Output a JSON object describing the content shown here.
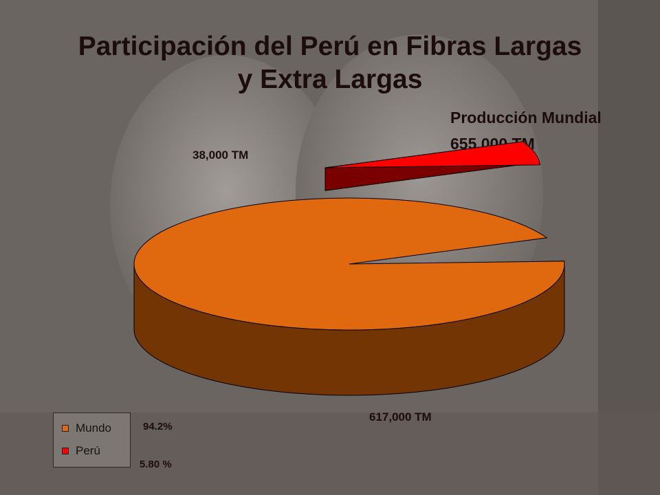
{
  "title_line1": "Participación del Perú en Fibras Largas",
  "title_line2": "y Extra Largas",
  "production": {
    "title": "Producción Mundial",
    "value": "655.000 TM"
  },
  "chart_data": {
    "type": "pie",
    "style": "3d-exploded",
    "title": "Participación del Perú en Fibras Largas y Extra Largas",
    "series": [
      {
        "name": "",
        "labels": [
          "Mundo",
          "Perú"
        ],
        "values": [
          617000,
          38000
        ],
        "percent_labels": [
          "94.2%",
          "5.80 %"
        ],
        "data_labels": [
          "617,000 TM",
          "38,000 TM"
        ],
        "colors": [
          "#e0680f",
          "#ff0000"
        ],
        "side_colors": [
          "#733503",
          "#7a0000"
        ]
      }
    ],
    "legend": {
      "position": "bottom-left",
      "entries": [
        "Mundo",
        "Perú"
      ]
    }
  }
}
